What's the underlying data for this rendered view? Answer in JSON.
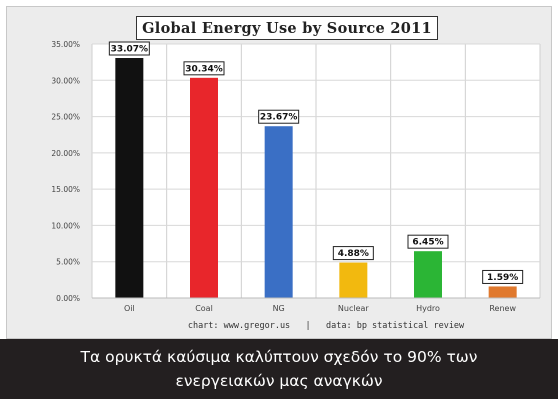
{
  "chart_data": {
    "type": "bar",
    "title": "Global Energy Use by Source 2011",
    "categories": [
      "Oil",
      "Coal",
      "NG",
      "Nuclear",
      "Hydro",
      "Renew"
    ],
    "values": [
      33.07,
      30.34,
      23.67,
      4.88,
      6.45,
      1.59
    ],
    "data_labels": [
      "33.07%",
      "30.34%",
      "23.67%",
      "4.88%",
      "6.45%",
      "1.59%"
    ],
    "bar_colors": [
      "#111111",
      "#e8262b",
      "#3a6fc5",
      "#f2b90f",
      "#2bb535",
      "#e0792e"
    ],
    "ylim": [
      0,
      35
    ],
    "yticks": [
      0,
      5,
      10,
      15,
      20,
      25,
      30,
      35
    ],
    "ytick_labels": [
      "0.00%",
      "5.00%",
      "10.00%",
      "15.00%",
      "20.00%",
      "25.00%",
      "30.00%",
      "35.00%"
    ],
    "grid": true,
    "source_note": "chart: www.gregor.us   |   data: bp statistical review"
  },
  "caption": "Τα ορυκτά καύσιμα καλύπτουν σχεδόν το 90% των ενεργειακών μας αναγκών",
  "colors": {
    "panel_background": "#ececec",
    "plot_background": "#ffffff",
    "caption_background": "#231f20"
  }
}
